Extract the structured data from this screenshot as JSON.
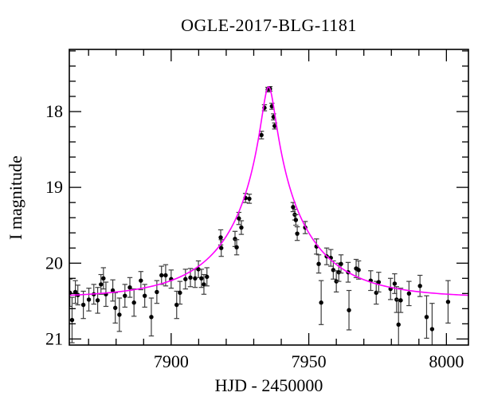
{
  "title": "OGLE-2017-BLG-1181",
  "chart_data": {
    "type": "scatter",
    "title": "OGLE-2017-BLG-1181",
    "xlabel": "HJD - 2450000",
    "ylabel": "I magnitude",
    "xlim": [
      7863,
      8008
    ],
    "ylim_mag": [
      17.18,
      21.08
    ],
    "y_axis_inverted": true,
    "grid": false,
    "legend": "none",
    "x_major_ticks": [
      7900,
      7950,
      8000
    ],
    "x_minor_step": 10,
    "y_major_ticks": [
      18,
      19,
      20,
      21
    ],
    "y_minor_step": 0.2,
    "colors": {
      "model_curve": "#ff00ff",
      "data_points": "#000000",
      "error_bars": "#3d3d3d",
      "frame": "#000000",
      "background": "#ffffff"
    },
    "model": {
      "type": "paczynski-microlensing",
      "t0": 7935.4,
      "u0": 0.077,
      "tE": 30,
      "baseline_mag": 20.46,
      "peak_mag": 17.67,
      "description": "single-lens point-source microlensing magnification curve"
    },
    "points_format": [
      "hjd_minus_2450000",
      "I_mag",
      "error_mag"
    ],
    "points": [
      [
        7863.2,
        20.39,
        0.18
      ],
      [
        7864.0,
        20.75,
        0.3
      ],
      [
        7865.2,
        20.38,
        0.15
      ],
      [
        7866.1,
        20.42,
        0.13
      ],
      [
        7868.1,
        20.55,
        0.18
      ],
      [
        7870.1,
        20.48,
        0.15
      ],
      [
        7871.9,
        20.41,
        0.13
      ],
      [
        7873.3,
        20.49,
        0.17
      ],
      [
        7874.5,
        20.28,
        0.13
      ],
      [
        7875.4,
        20.2,
        0.14
      ],
      [
        7876.3,
        20.41,
        0.16
      ],
      [
        7878.8,
        20.36,
        0.14
      ],
      [
        7879.7,
        20.59,
        0.2
      ],
      [
        7881.2,
        20.68,
        0.22
      ],
      [
        7883.2,
        20.43,
        0.15
      ],
      [
        7885.0,
        20.32,
        0.13
      ],
      [
        7886.5,
        20.52,
        0.18
      ],
      [
        7889.0,
        20.23,
        0.12
      ],
      [
        7890.4,
        20.43,
        0.15
      ],
      [
        7892.8,
        20.71,
        0.25
      ],
      [
        7894.8,
        20.38,
        0.15
      ],
      [
        7896.5,
        20.16,
        0.12
      ],
      [
        7898.0,
        20.16,
        0.14
      ],
      [
        7900.0,
        20.21,
        0.12
      ],
      [
        7902.0,
        20.55,
        0.18
      ],
      [
        7903.2,
        20.39,
        0.15
      ],
      [
        7905.2,
        20.21,
        0.13
      ],
      [
        7907.0,
        20.19,
        0.12
      ],
      [
        7908.7,
        20.2,
        0.12
      ],
      [
        7909.9,
        20.08,
        0.11
      ],
      [
        7911.0,
        20.2,
        0.12
      ],
      [
        7911.9,
        20.28,
        0.13
      ],
      [
        7913.0,
        20.18,
        0.12
      ],
      [
        7918.0,
        19.66,
        0.1
      ],
      [
        7918.2,
        19.8,
        0.11
      ],
      [
        7923.2,
        19.68,
        0.1
      ],
      [
        7923.8,
        19.79,
        0.1
      ],
      [
        7924.6,
        19.41,
        0.08
      ],
      [
        7925.5,
        19.53,
        0.09
      ],
      [
        7927.0,
        19.14,
        0.06
      ],
      [
        7928.4,
        19.15,
        0.06
      ],
      [
        7932.8,
        18.31,
        0.05
      ],
      [
        7933.9,
        17.95,
        0.04
      ],
      [
        7935.1,
        17.71,
        0.03
      ],
      [
        7935.9,
        17.7,
        0.03
      ],
      [
        7936.6,
        17.93,
        0.04
      ],
      [
        7937.2,
        18.07,
        0.04
      ],
      [
        7937.6,
        18.19,
        0.04
      ],
      [
        7944.3,
        19.26,
        0.06
      ],
      [
        7944.9,
        19.36,
        0.07
      ],
      [
        7945.3,
        19.43,
        0.07
      ],
      [
        7945.8,
        19.61,
        0.09
      ],
      [
        7948.7,
        19.53,
        0.08
      ],
      [
        7952.8,
        19.78,
        0.1
      ],
      [
        7953.6,
        20.01,
        0.12
      ],
      [
        7954.5,
        20.52,
        0.29
      ],
      [
        7956.5,
        19.91,
        0.11
      ],
      [
        7958.0,
        19.93,
        0.11
      ],
      [
        7958.9,
        20.09,
        0.12
      ],
      [
        7960.0,
        20.24,
        0.14
      ],
      [
        7960.9,
        20.12,
        0.12
      ],
      [
        7961.7,
        20.01,
        0.12
      ],
      [
        7964.3,
        20.12,
        0.13
      ],
      [
        7964.6,
        20.62,
        0.26
      ],
      [
        7967.2,
        20.07,
        0.12
      ],
      [
        7968.1,
        20.09,
        0.12
      ],
      [
        7972.5,
        20.23,
        0.13
      ],
      [
        7974.5,
        20.39,
        0.15
      ],
      [
        7975.4,
        20.25,
        0.13
      ],
      [
        7979.7,
        20.34,
        0.14
      ],
      [
        7981.2,
        20.27,
        0.13
      ],
      [
        7981.9,
        20.48,
        0.17
      ],
      [
        7982.6,
        20.81,
        0.33
      ],
      [
        7983.4,
        20.49,
        0.16
      ],
      [
        7986.4,
        20.4,
        0.16
      ],
      [
        7990.4,
        20.3,
        0.14
      ],
      [
        7992.8,
        20.71,
        0.28
      ],
      [
        7994.8,
        20.87,
        0.34
      ],
      [
        8000.6,
        20.51,
        0.28
      ]
    ]
  }
}
